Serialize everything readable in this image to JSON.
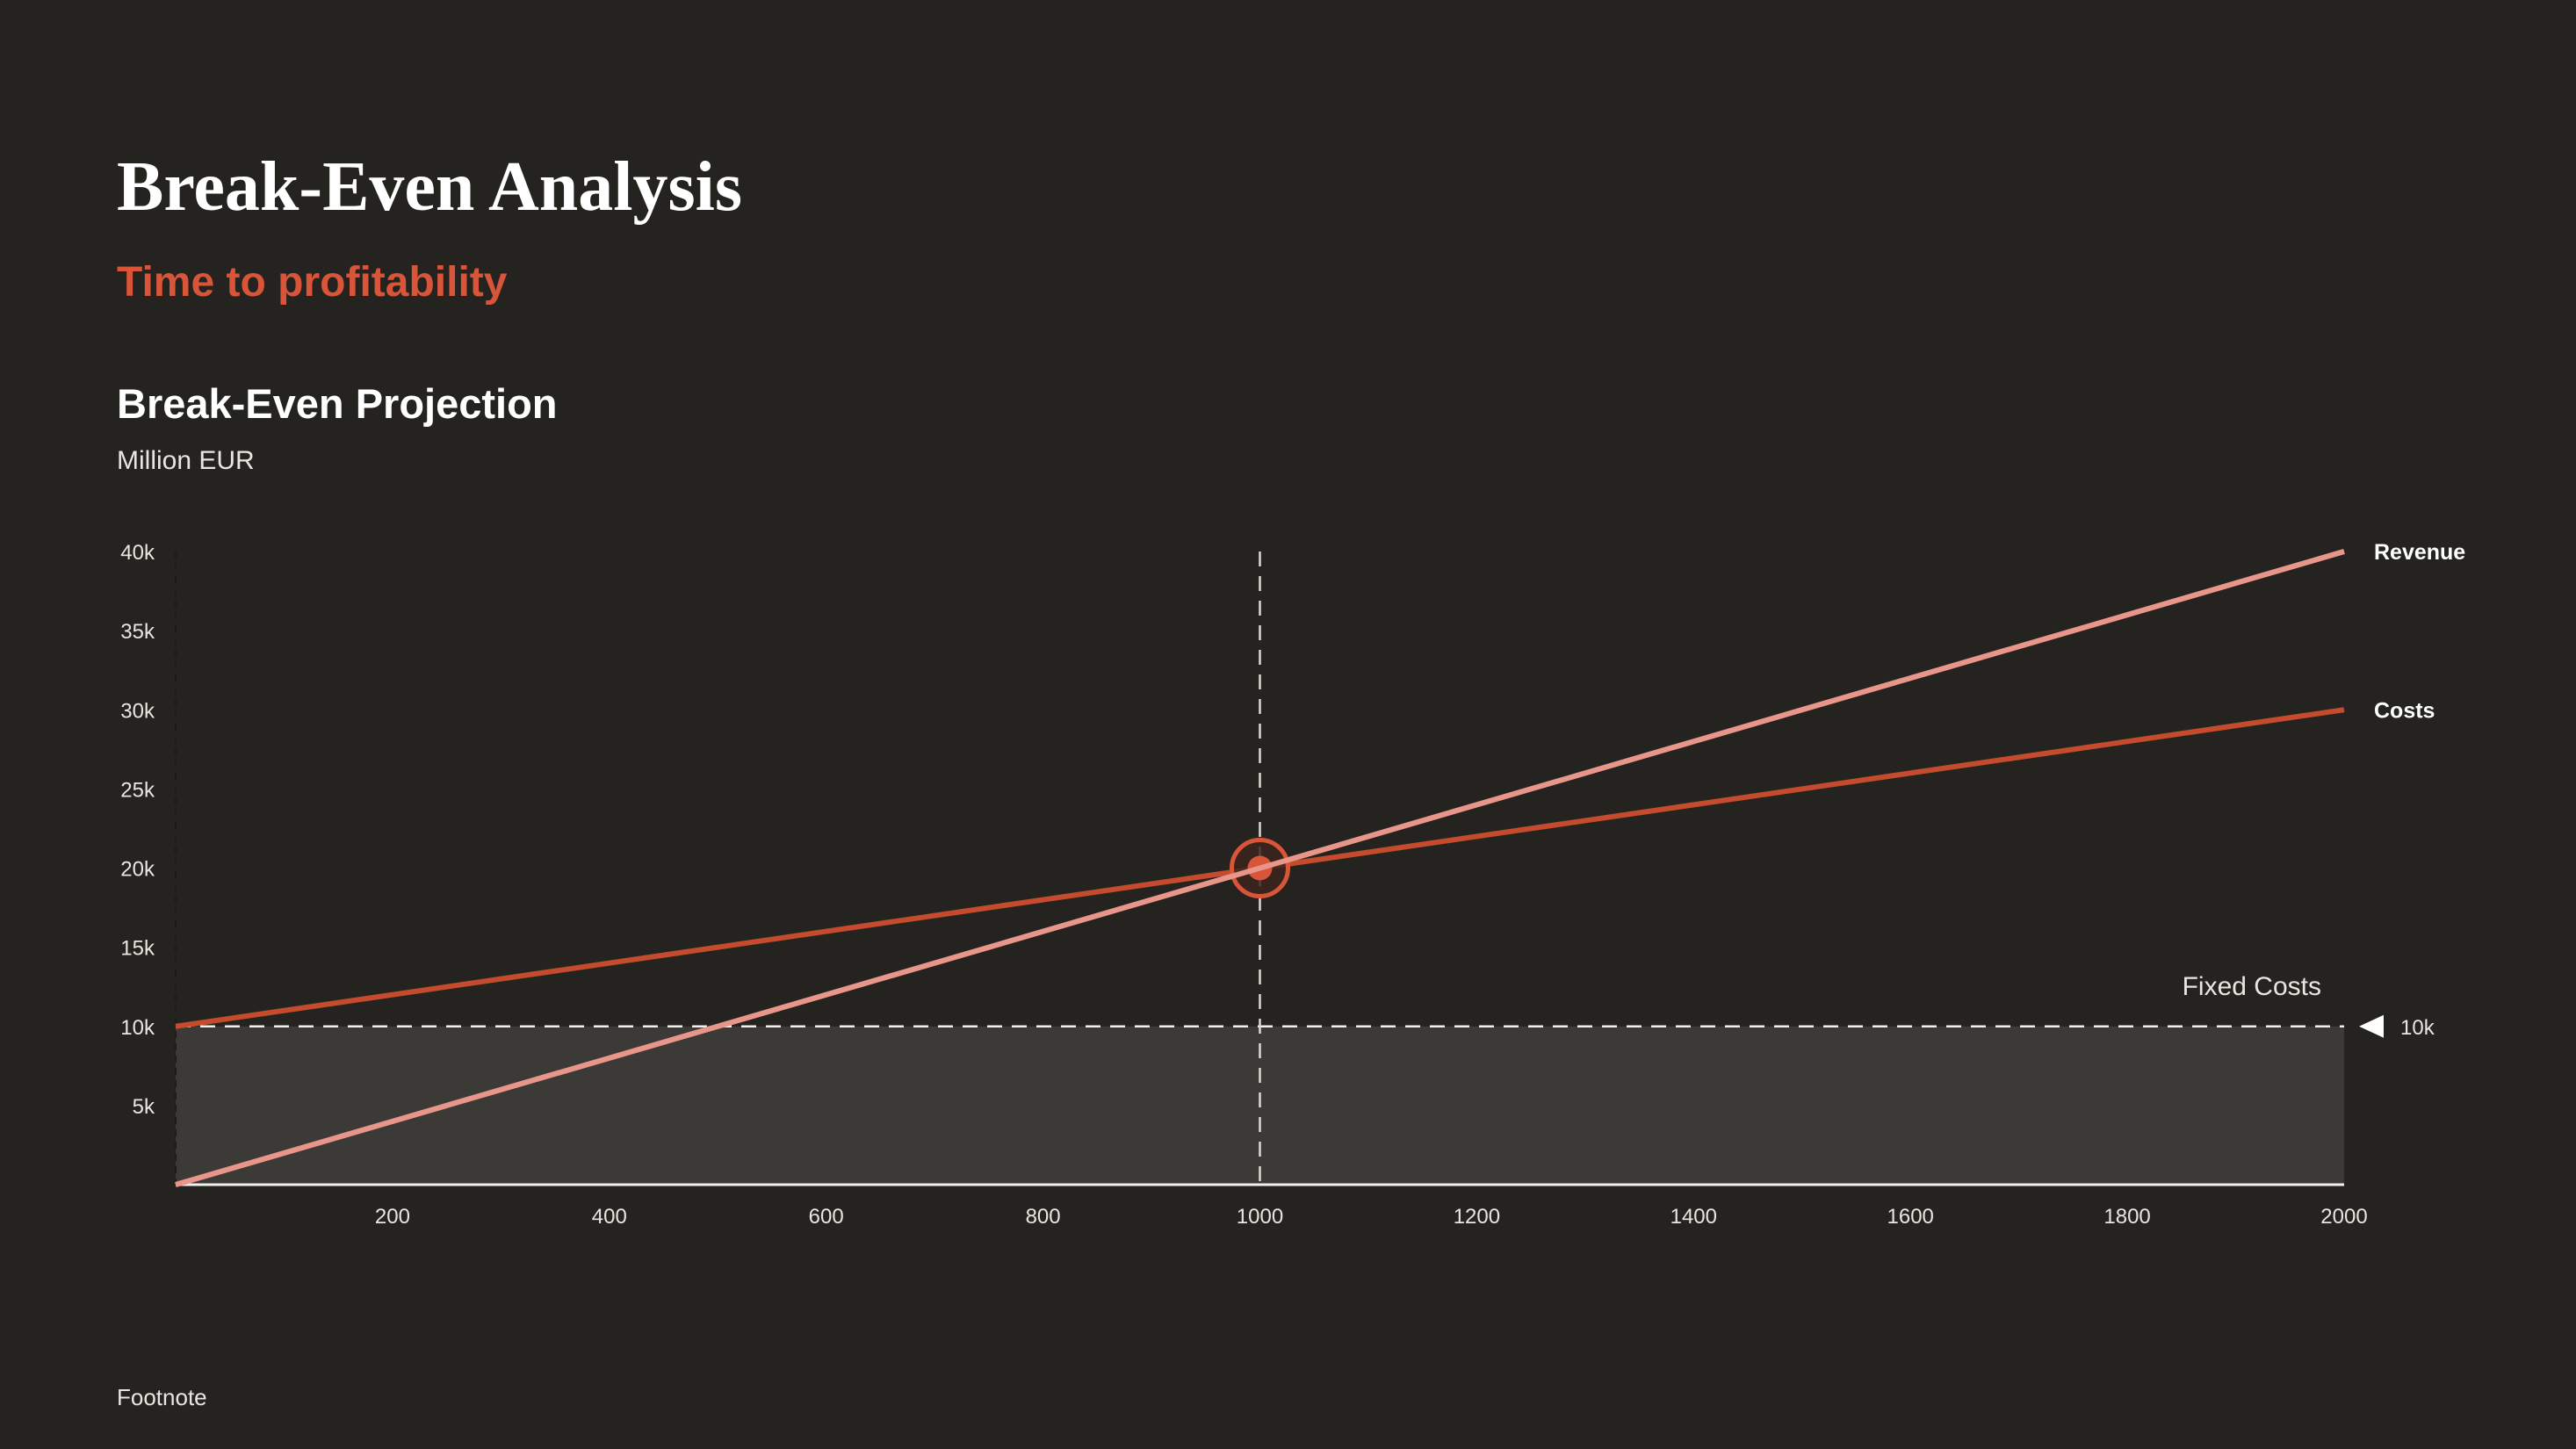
{
  "header": {
    "title": "Break-Even Analysis",
    "subtitle": "Time to profitability"
  },
  "footnote": "Footnote",
  "colors": {
    "background": "#242320",
    "accent": "#d9553a",
    "revenue": "#e8968a",
    "costs": "#c44b2e",
    "fixed_costs_area": "#3b3a36"
  },
  "chart_data": {
    "type": "line",
    "title": "Break-Even Projection",
    "ylabel": "Million EUR",
    "xlabel": "",
    "xlim": [
      0,
      2000
    ],
    "ylim": [
      0,
      40000
    ],
    "x_ticks": [
      200,
      400,
      600,
      800,
      1000,
      1200,
      1400,
      1600,
      1800,
      2000
    ],
    "y_ticks": [
      5000,
      10000,
      15000,
      20000,
      25000,
      30000,
      35000,
      40000
    ],
    "y_tick_labels": [
      "5k",
      "10k",
      "15k",
      "20k",
      "25k",
      "30k",
      "35k",
      "40k"
    ],
    "grid": false,
    "legend": "direct labels at line ends (right)",
    "series": [
      {
        "name": "Revenue",
        "x": [
          0,
          2000
        ],
        "y": [
          0,
          40000
        ]
      },
      {
        "name": "Costs",
        "x": [
          0,
          2000
        ],
        "y": [
          10000,
          30000
        ]
      }
    ],
    "fixed_costs": {
      "label": "Fixed Costs",
      "value": 10000,
      "value_label": "10k"
    },
    "break_even": {
      "x": 1000,
      "y": 20000
    }
  }
}
